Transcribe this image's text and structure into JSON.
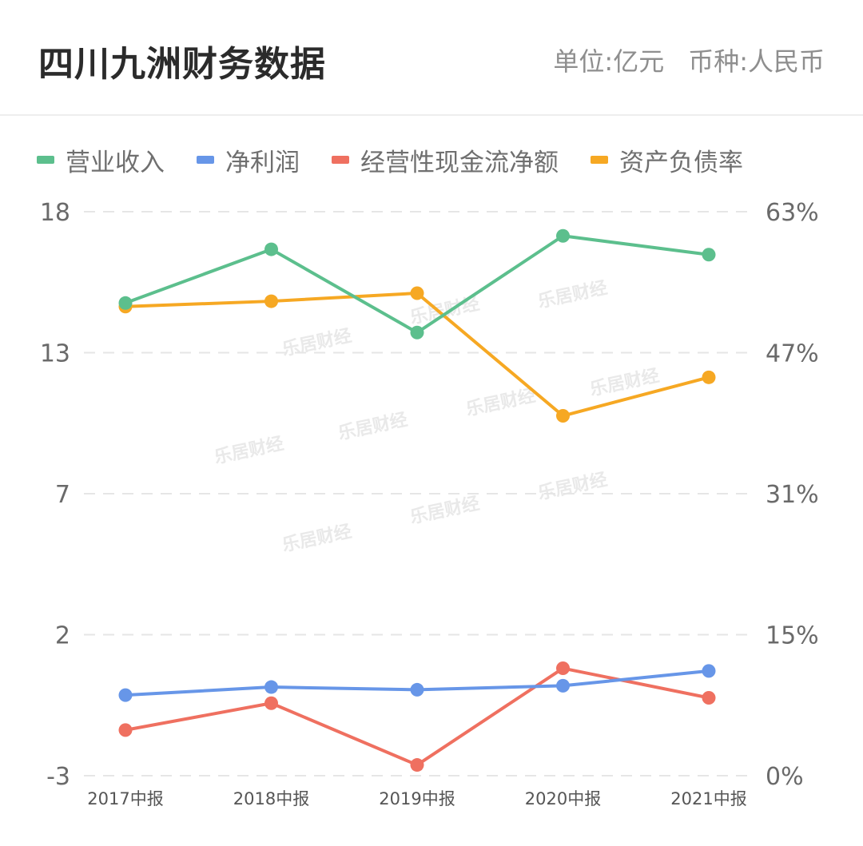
{
  "header": {
    "title": "四川九洲财务数据",
    "unit": "单位:亿元",
    "currency": "币种:人民币"
  },
  "legend": [
    {
      "label": "营业收入",
      "color": "#5cbf8d"
    },
    {
      "label": "净利润",
      "color": "#6796e8"
    },
    {
      "label": "经营性现金流净额",
      "color": "#ef7060"
    },
    {
      "label": "资产负债率",
      "color": "#f6a823"
    }
  ],
  "watermark": "乐居财经",
  "chart_data": {
    "type": "line",
    "categories": [
      "2017中报",
      "2018中报",
      "2019中报",
      "2020中报",
      "2021中报"
    ],
    "y_left": {
      "ticks": [
        "18",
        "13",
        "7",
        "2",
        "-3"
      ],
      "lim": [
        -3,
        18
      ]
    },
    "y_right": {
      "ticks": [
        "63%",
        "47%",
        "31%",
        "15%",
        "0%"
      ],
      "lim": [
        0,
        63
      ]
    },
    "grid": true,
    "legend_position": "top",
    "series": [
      {
        "name": "营业收入",
        "axis": "left",
        "color": "#5cbf8d",
        "values": [
          14.6,
          16.6,
          13.5,
          17.1,
          16.4
        ]
      },
      {
        "name": "净利润",
        "axis": "left",
        "color": "#6796e8",
        "values": [
          0.0,
          0.3,
          0.2,
          0.35,
          0.9
        ]
      },
      {
        "name": "经营性现金流净额",
        "axis": "left",
        "color": "#ef7060",
        "values": [
          -1.3,
          -0.3,
          -2.6,
          1.0,
          -0.1
        ]
      },
      {
        "name": "资产负债率",
        "axis": "right",
        "color": "#f6a823",
        "values": [
          52.4,
          53.0,
          53.9,
          40.2,
          44.5
        ]
      }
    ]
  }
}
